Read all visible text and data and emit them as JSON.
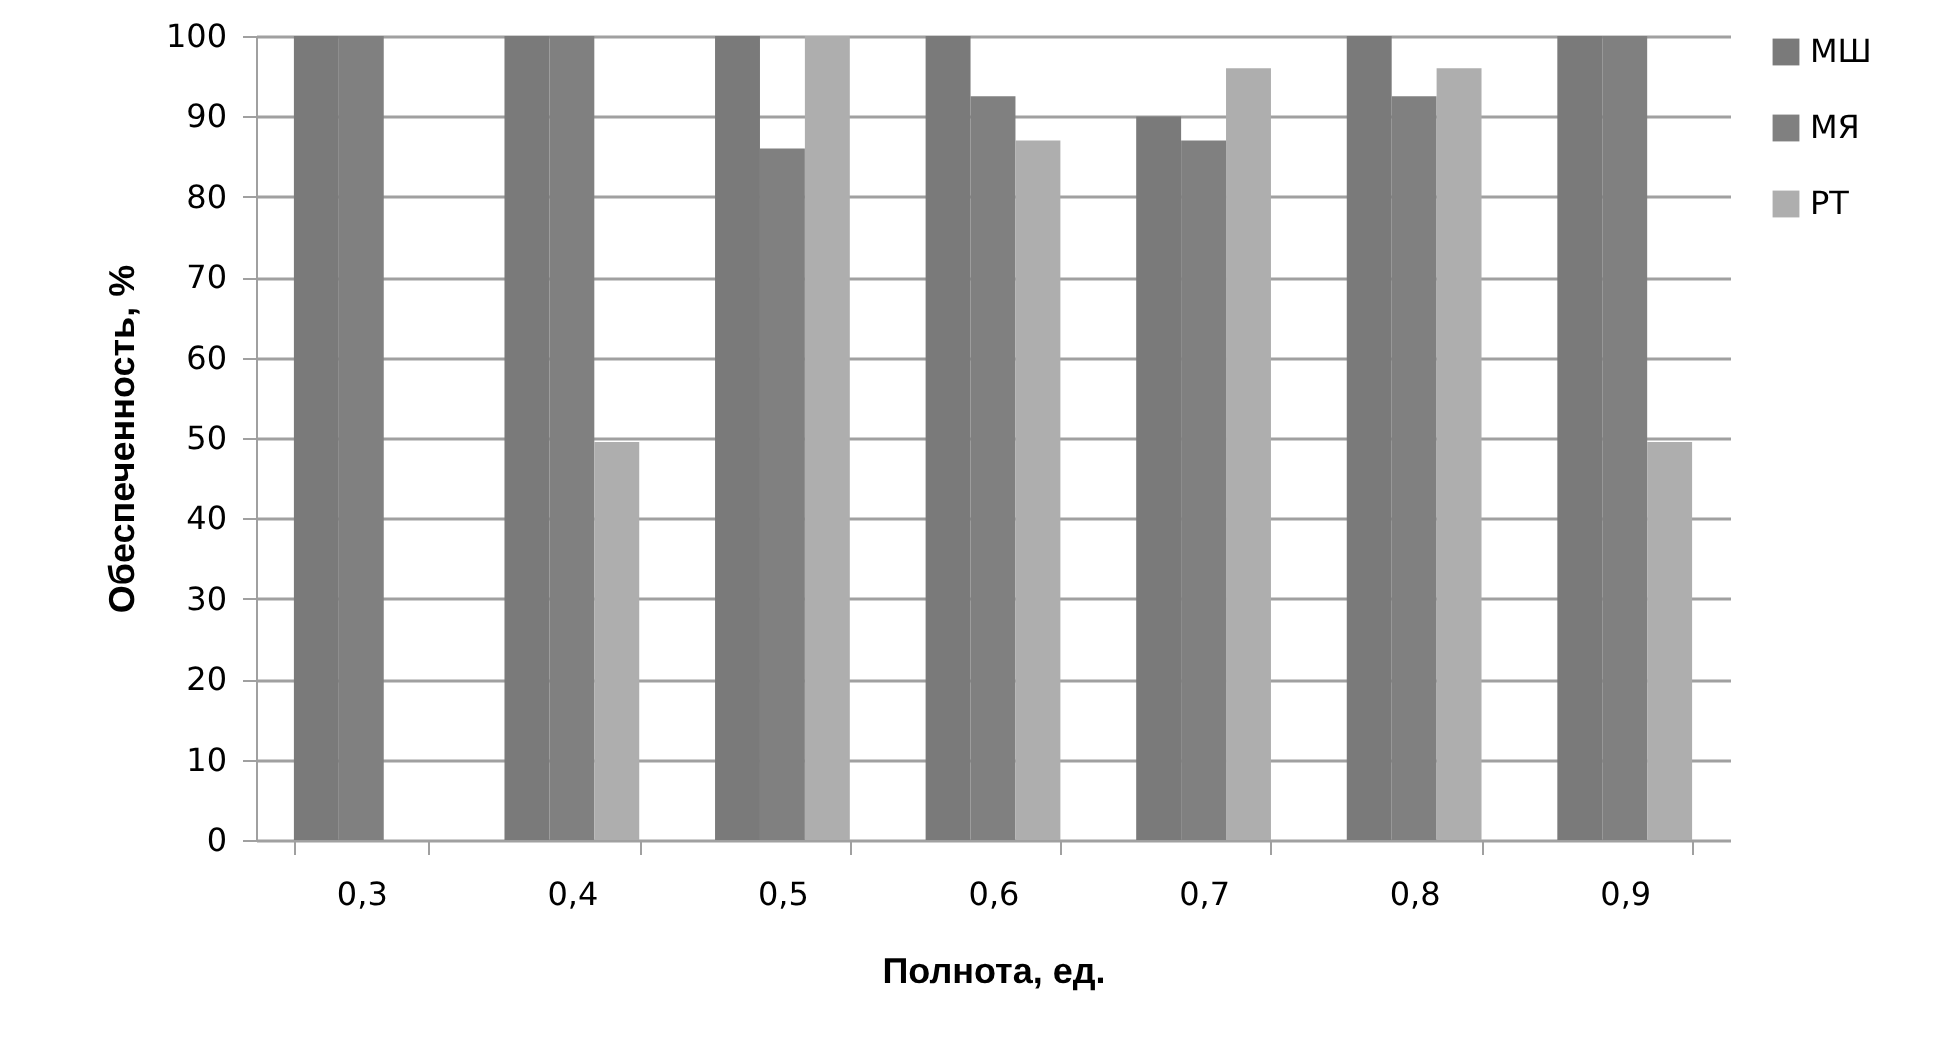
{
  "chart_data": {
    "type": "bar",
    "xlabel": "Полнота, ед.",
    "ylabel": "Обеспеченность, %",
    "categories": [
      "0,3",
      "0,4",
      "0,5",
      "0,6",
      "0,7",
      "0,8",
      "0,9"
    ],
    "series": [
      {
        "name": "МШ",
        "color": "#7a7a7a",
        "values": [
          100,
          100,
          100,
          100,
          90,
          100,
          100
        ]
      },
      {
        "name": "МЯ",
        "color": "#808080",
        "values": [
          100,
          100,
          86,
          92.5,
          87,
          92.5,
          100
        ]
      },
      {
        "name": "РТ",
        "color": "#aeaeae",
        "values": [
          null,
          49.5,
          100,
          87,
          96,
          96,
          49.5
        ]
      }
    ],
    "ylim": [
      0,
      100
    ],
    "yticks": [
      0,
      10,
      20,
      30,
      40,
      50,
      60,
      70,
      80,
      90,
      100
    ],
    "grid": "y",
    "legend": "right"
  }
}
